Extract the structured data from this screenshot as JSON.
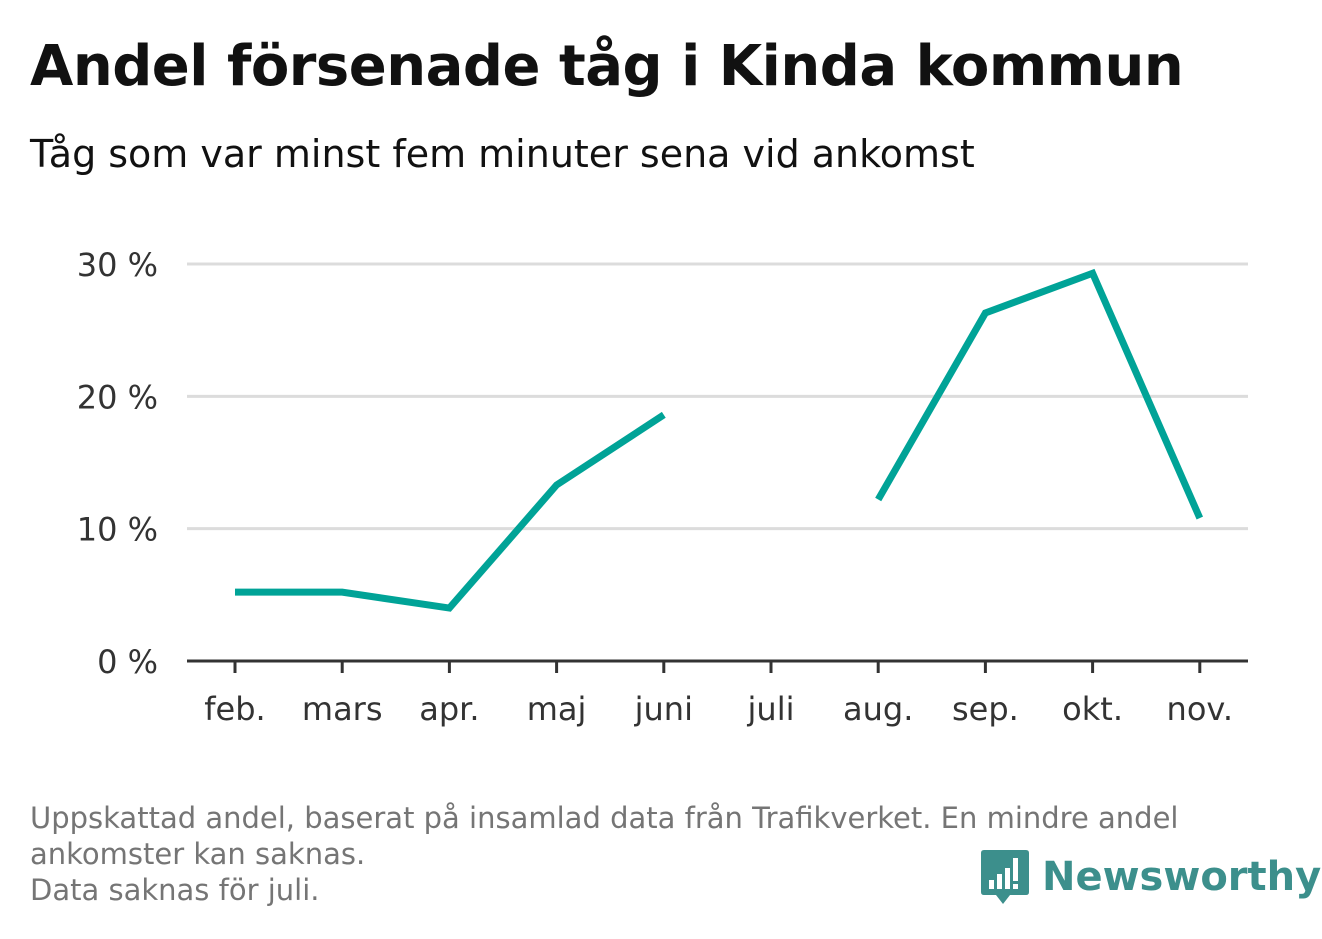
{
  "header": {
    "title": "Andel försenade tåg i Kinda kommun",
    "subtitle": "Tåg som var minst fem minuter sena vid ankomst"
  },
  "chart_data": {
    "type": "line",
    "categories": [
      "feb.",
      "mars",
      "apr.",
      "maj",
      "juni",
      "juli",
      "aug.",
      "sep.",
      "okt.",
      "nov."
    ],
    "series": [
      {
        "values": [
          5.2,
          5.2,
          4.0,
          13.3,
          18.6,
          null,
          12.2,
          26.3,
          29.3,
          10.8
        ]
      }
    ],
    "y_ticks": [
      {
        "value": 0,
        "label": "0 %"
      },
      {
        "value": 10,
        "label": "10 %"
      },
      {
        "value": 20,
        "label": "20 %"
      },
      {
        "value": 30,
        "label": "30 %"
      }
    ],
    "ylim": [
      0,
      30
    ],
    "grid": true,
    "line_color": "#00a397"
  },
  "footer": {
    "note_lines": [
      "Uppskattad andel, baserat på insamlad data från Trafikverket. En mindre andel",
      "ankomster kan saknas.",
      "Data saknas för juli."
    ],
    "brand": "Newsworthy",
    "brand_icon": "newsworthy-logo-icon"
  }
}
